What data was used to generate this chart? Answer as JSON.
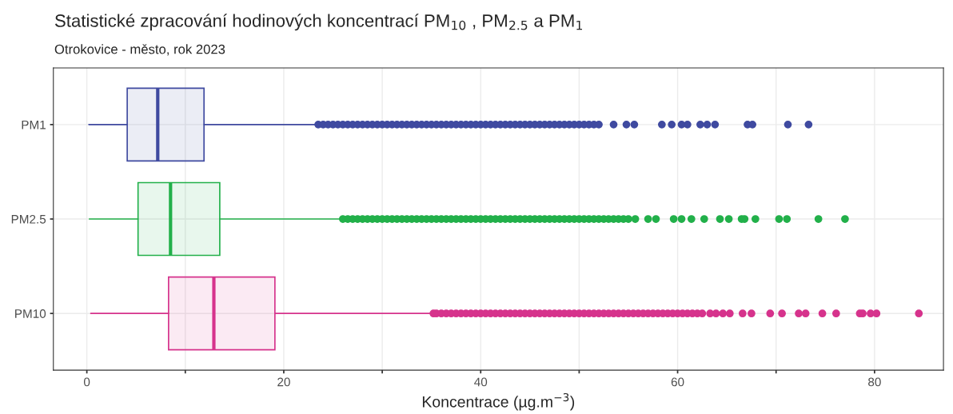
{
  "chart_data": {
    "type": "box",
    "title": "Statistické zpracování hodinových koncentrací PM$_{10}$ , PM$_{2.5}$ a PM$_{1}$",
    "subtitle": "Otrokovice - město, rok 2023",
    "xlabel": "Koncentrace (µg.m$^{−3}$)",
    "orientation": "horizontal",
    "categories": [
      "PM1",
      "PM2.5",
      "PM10"
    ],
    "colors": [
      "#3f4aa0",
      "#22b04a",
      "#d6338c"
    ],
    "boxes": [
      {
        "low": 0.2,
        "q1": 4.1,
        "median": 7.2,
        "q3": 11.9,
        "high": 23.3,
        "outliers": [
          23.5,
          24,
          24.5,
          25,
          25.5,
          26,
          26.5,
          27,
          27.5,
          28,
          28.5,
          29,
          29.5,
          30,
          30.5,
          31,
          31.5,
          32,
          32.5,
          33,
          33.5,
          34,
          34.5,
          35,
          35.5,
          36,
          36.5,
          37,
          37.5,
          38,
          38.5,
          39,
          39.5,
          40,
          40.5,
          41,
          41.5,
          42,
          42.5,
          43,
          43.5,
          44,
          44.5,
          45,
          45.5,
          46,
          46.5,
          47,
          47.5,
          48,
          48.5,
          49,
          49.5,
          50,
          50.5,
          51,
          51.5,
          52,
          53.5,
          54.8,
          55.6,
          58.4,
          59.4,
          60.4,
          61.0,
          62.3,
          63.0,
          63.8,
          67.1,
          67.6,
          71.2,
          73.3
        ]
      },
      {
        "low": 0.25,
        "q1": 5.2,
        "median": 8.5,
        "q3": 13.5,
        "high": 25.6,
        "outliers": [
          26,
          26.5,
          27,
          27.5,
          28,
          28.5,
          29,
          29.5,
          30,
          30.5,
          31,
          31.5,
          32,
          32.5,
          33,
          33.5,
          34,
          34.5,
          35,
          35.5,
          36,
          36.5,
          37,
          37.5,
          38,
          38.5,
          39,
          39.5,
          40,
          40.5,
          41,
          41.5,
          42,
          42.5,
          43,
          43.5,
          44,
          44.5,
          45,
          45.5,
          46,
          46.5,
          47,
          47.5,
          48,
          48.5,
          49,
          49.5,
          50,
          50.5,
          51,
          51.5,
          52,
          52.5,
          53,
          53.5,
          54,
          54.5,
          55,
          55.7,
          57.0,
          57.8,
          59.6,
          60.4,
          61.4,
          62.7,
          64.3,
          65.2,
          66.5,
          66.8,
          67.9,
          70.3,
          71.1,
          74.3,
          77.0
        ]
      },
      {
        "low": 0.4,
        "q1": 8.3,
        "median": 12.9,
        "q3": 19.1,
        "high": 35.0,
        "outliers": [
          35.2,
          35.5,
          36,
          36.5,
          37,
          37.5,
          38,
          38.5,
          39,
          39.5,
          40,
          40.5,
          41,
          41.5,
          42,
          42.5,
          43,
          43.5,
          44,
          44.5,
          45,
          45.5,
          46,
          46.5,
          47,
          47.5,
          48,
          48.5,
          49,
          49.5,
          50,
          50.5,
          51,
          51.5,
          52,
          52.5,
          53,
          53.5,
          54,
          54.5,
          55,
          55.5,
          56,
          56.5,
          57,
          57.5,
          58,
          58.5,
          59,
          59.5,
          60,
          60.5,
          61,
          61.5,
          62,
          62.5,
          63.3,
          63.9,
          64.6,
          65.3,
          66.6,
          67.5,
          69.4,
          70.6,
          72.3,
          73.0,
          74.7,
          76.1,
          78.5,
          78.8,
          79.6,
          80.2,
          84.5
        ]
      }
    ],
    "xlim": [
      -3.4,
      87
    ],
    "xticks": [
      0,
      {
        "value": 10,
        "label": null
      },
      20,
      {
        "value": 30,
        "label": null
      },
      40,
      {
        "value": 50,
        "label": null
      },
      60,
      {
        "value": 70,
        "label": null
      },
      80
    ],
    "grid": true,
    "marker": "circle"
  }
}
